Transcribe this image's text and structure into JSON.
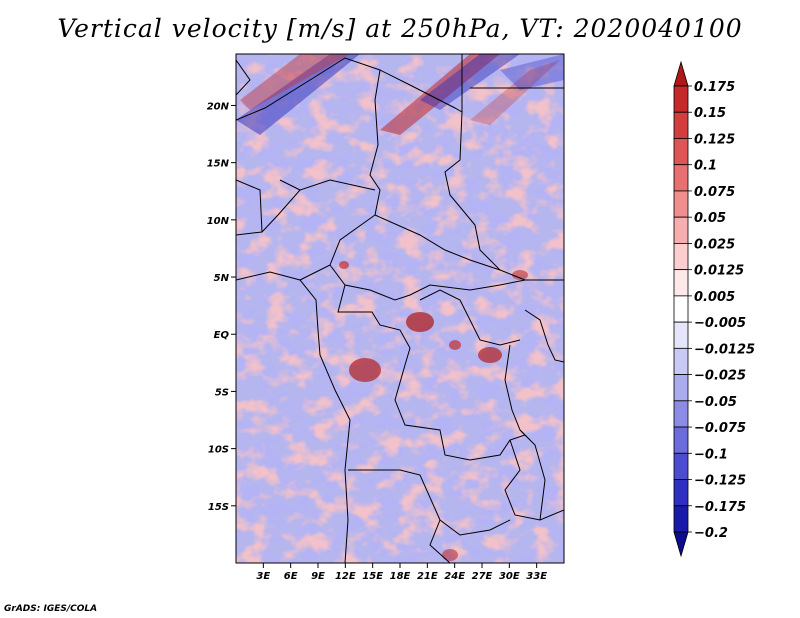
{
  "title": "Vertical velocity [m/s] at 250hPa, VT: 2020040100",
  "credit": "GrADS: IGES/COLA",
  "map": {
    "lon_range": [
      0,
      36
    ],
    "lat_range": [
      -20,
      24.5
    ],
    "lon_ticks": [
      "3E",
      "6E",
      "9E",
      "12E",
      "15E",
      "18E",
      "21E",
      "24E",
      "27E",
      "30E",
      "33E"
    ],
    "lon_tick_values": [
      3,
      6,
      9,
      12,
      15,
      18,
      21,
      24,
      27,
      30,
      33
    ],
    "lat_ticks": [
      "20N",
      "15N",
      "10N",
      "5N",
      "EQ",
      "5S",
      "10S",
      "15S"
    ],
    "lat_tick_values": [
      20,
      15,
      10,
      5,
      0,
      -5,
      -10,
      -15
    ]
  },
  "colorbar": {
    "labels": [
      "0.175",
      "0.15",
      "0.125",
      "0.1",
      "0.075",
      "0.05",
      "0.025",
      "0.0125",
      "0.005",
      "-0.005",
      "-0.0125",
      "-0.025",
      "-0.05",
      "-0.075",
      "-0.1",
      "-0.125",
      "-0.175",
      "-0.2"
    ],
    "colors": [
      "#b01818",
      "#c42a2a",
      "#d23e3e",
      "#de5555",
      "#e87070",
      "#f08e8e",
      "#f6aeae",
      "#fbcfcf",
      "#fde9e9",
      "#ffffff",
      "#e4e4fb",
      "#c9c9f5",
      "#ababef",
      "#8c8ce7",
      "#6c6cdd",
      "#4c4cd0",
      "#3030c0",
      "#1a1aa8",
      "#0c0c90"
    ]
  }
}
